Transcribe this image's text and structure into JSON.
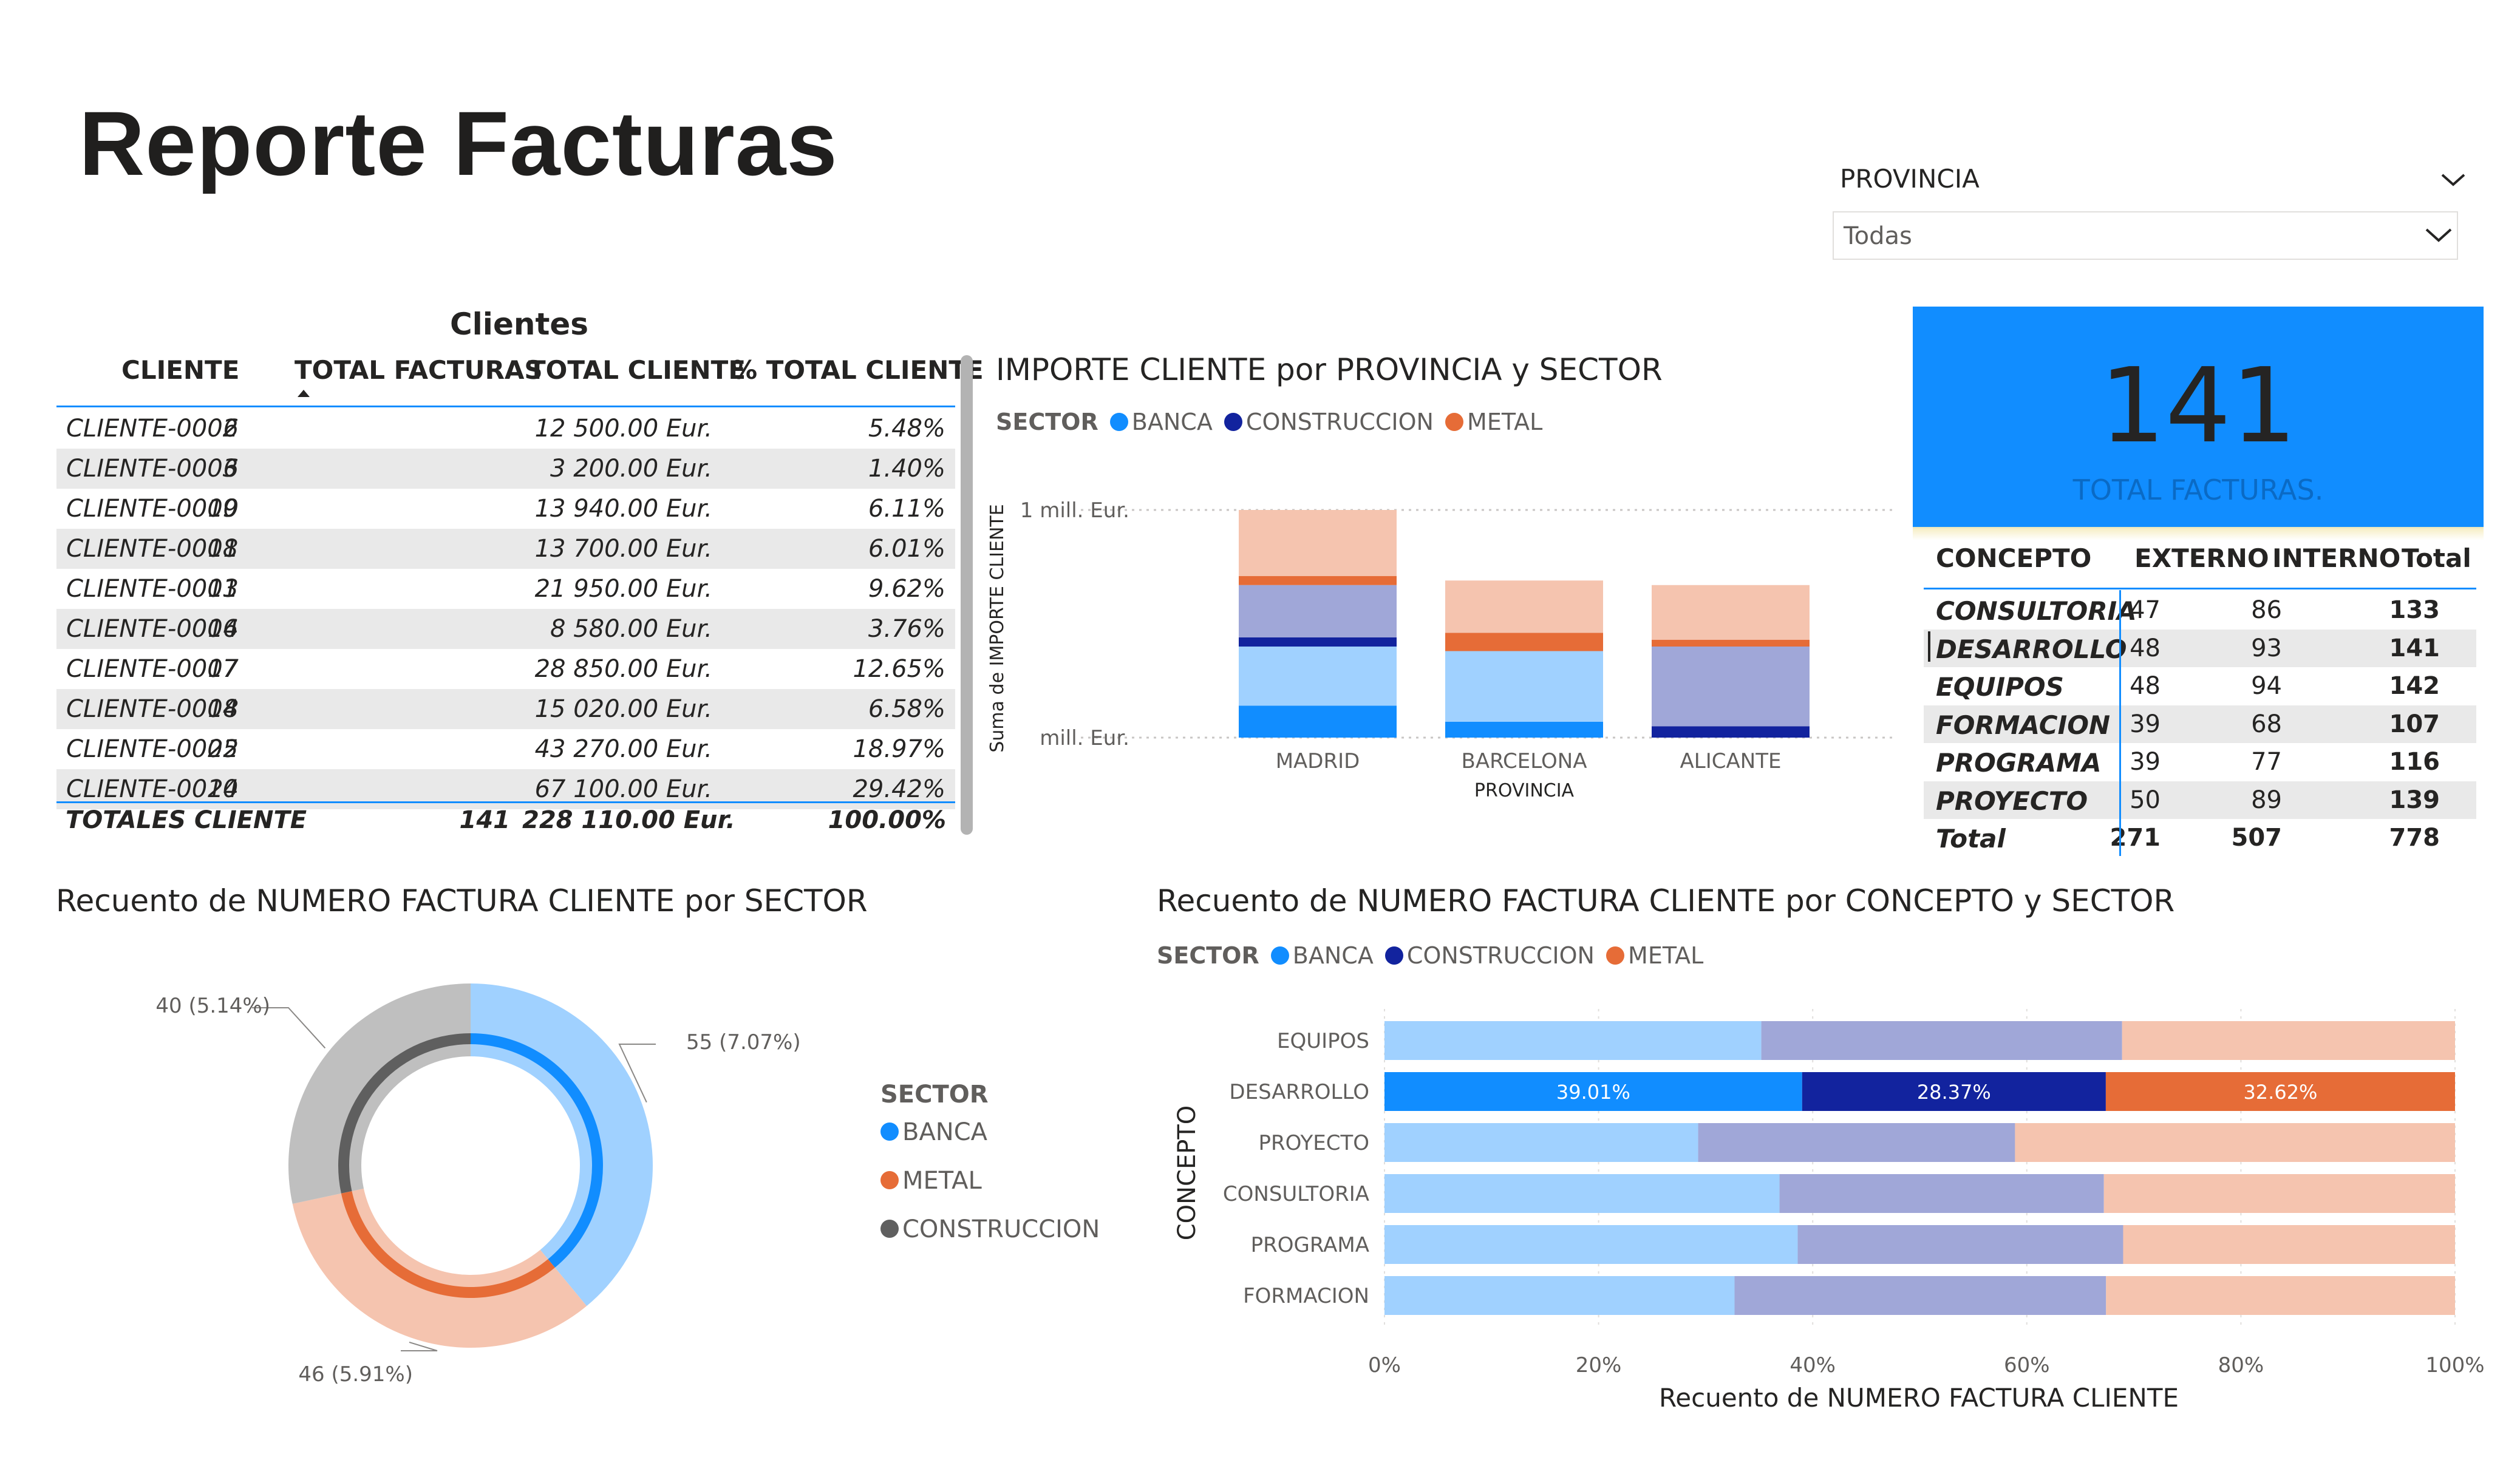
{
  "page_title": "Reporte Facturas",
  "slicer": {
    "label": "PROVINCIA",
    "value": "Todas"
  },
  "kpi": {
    "value": "141",
    "label": "TOTAL FACTURAS."
  },
  "colors": {
    "banca": "#118dff",
    "banca_light": "#a0d1ff",
    "construccion": "#12239e",
    "construccion_light": "#a0a7d8",
    "metal": "#e66c37",
    "metal_light": "#f5c4af",
    "gray": "#bfbfbf",
    "gray_dark": "#5f5f5f"
  },
  "clients_table": {
    "title": "Clientes",
    "headers": [
      "CLIENTE",
      "TOTAL FACTURAS",
      "TOTAL CLIENTE",
      "% TOTAL CLIENTE"
    ],
    "rows": [
      [
        "CLIENTE-0002",
        "6",
        "12 500.00 Eur.",
        "5.48%"
      ],
      [
        "CLIENTE-0003",
        "6",
        "3 200.00 Eur.",
        "1.40%"
      ],
      [
        "CLIENTE-0009",
        "10",
        "13 940.00 Eur.",
        "6.11%"
      ],
      [
        "CLIENTE-0008",
        "11",
        "13 700.00 Eur.",
        "6.01%"
      ],
      [
        "CLIENTE-0001",
        "13",
        "21 950.00 Eur.",
        "9.62%"
      ],
      [
        "CLIENTE-0006",
        "14",
        "8 580.00 Eur.",
        "3.76%"
      ],
      [
        "CLIENTE-0007",
        "17",
        "28 850.00 Eur.",
        "12.65%"
      ],
      [
        "CLIENTE-0004",
        "18",
        "15 020.00 Eur.",
        "6.58%"
      ],
      [
        "CLIENTE-0005",
        "22",
        "43 270.00 Eur.",
        "18.97%"
      ],
      [
        "CLIENTE-0010",
        "24",
        "67 100.00 Eur.",
        "29.42%"
      ]
    ],
    "total": [
      "TOTALES CLIENTE",
      "141",
      "228 110.00 Eur.",
      "100.00%"
    ]
  },
  "matrix_table": {
    "headers": [
      "CONCEPTO",
      "EXTERNO",
      "INTERNO",
      "Total"
    ],
    "rows": [
      [
        "CONSULTORIA",
        "47",
        "86",
        "133"
      ],
      [
        "DESARROLLO",
        "48",
        "93",
        "141"
      ],
      [
        "EQUIPOS",
        "48",
        "94",
        "142"
      ],
      [
        "FORMACION",
        "39",
        "68",
        "107"
      ],
      [
        "PROGRAMA",
        "39",
        "77",
        "116"
      ],
      [
        "PROYECTO",
        "50",
        "89",
        "139"
      ]
    ],
    "total": [
      "Total",
      "271",
      "507",
      "778"
    ]
  },
  "chart_data": [
    {
      "type": "bar",
      "title": "IMPORTE CLIENTE por PROVINCIA y SECTOR",
      "xlabel": "PROVINCIA",
      "ylabel": "Suma de IMPORTE CLIENTE",
      "legend_title": "SECTOR",
      "legend": [
        "BANCA",
        "CONSTRUCCION",
        "METAL"
      ],
      "y_ticks": [
        "1 mill.  Eur.",
        "mill.  Eur."
      ],
      "ylim": [
        0,
        1
      ],
      "categories": [
        "MADRID",
        "BARCELONA",
        "ALICANTE"
      ],
      "stacked": true,
      "segments": [
        {
          "sector": "BANCA",
          "shade": "dark",
          "values": [
            0.14,
            0.07,
            0.0
          ]
        },
        {
          "sector": "BANCA",
          "shade": "light",
          "values": [
            0.26,
            0.31,
            0.0
          ]
        },
        {
          "sector": "CONSTRUCCION",
          "shade": "dark",
          "values": [
            0.04,
            0.0,
            0.05
          ]
        },
        {
          "sector": "CONSTRUCCION",
          "shade": "light",
          "values": [
            0.23,
            0.0,
            0.35
          ]
        },
        {
          "sector": "METAL",
          "shade": "dark",
          "values": [
            0.04,
            0.08,
            0.03
          ]
        },
        {
          "sector": "METAL",
          "shade": "light",
          "values": [
            0.29,
            0.23,
            0.24
          ]
        }
      ]
    },
    {
      "type": "pie",
      "title": "Recuento de NUMERO FACTURA CLIENTE por SECTOR",
      "legend_title": "SECTOR",
      "legend": [
        "BANCA",
        "METAL",
        "CONSTRUCCION"
      ],
      "series": [
        {
          "name": "BANCA",
          "value": 55,
          "label": "55 (7.07%)"
        },
        {
          "name": "METAL",
          "value": 46,
          "label": "46 (5.91%)"
        },
        {
          "name": "CONSTRUCCION",
          "value": 40,
          "label": "40 (5.14%)"
        }
      ]
    },
    {
      "type": "bar",
      "orientation": "horizontal",
      "stacked_percent": true,
      "title": "Recuento de NUMERO FACTURA CLIENTE por CONCEPTO y SECTOR",
      "xlabel": "Recuento de NUMERO FACTURA CLIENTE",
      "ylabel": "CONCEPTO",
      "legend_title": "SECTOR",
      "legend": [
        "BANCA",
        "CONSTRUCCION",
        "METAL"
      ],
      "x_ticks": [
        "0%",
        "20%",
        "40%",
        "60%",
        "80%",
        "100%"
      ],
      "categories": [
        "EQUIPOS",
        "DESARROLLO",
        "PROYECTO",
        "CONSULTORIA",
        "PROGRAMA",
        "FORMACION"
      ],
      "highlighted": "DESARROLLO",
      "series": [
        {
          "name": "BANCA",
          "values": [
            35.2,
            39.01,
            29.3,
            36.9,
            38.6,
            32.7
          ]
        },
        {
          "name": "CONSTRUCCION",
          "values": [
            33.7,
            28.37,
            29.6,
            30.3,
            30.4,
            34.7
          ]
        },
        {
          "name": "METAL",
          "values": [
            31.1,
            32.62,
            41.1,
            32.8,
            31.0,
            32.6
          ]
        }
      ],
      "data_labels": [
        "39.01%",
        "28.37%",
        "32.62%"
      ]
    }
  ]
}
